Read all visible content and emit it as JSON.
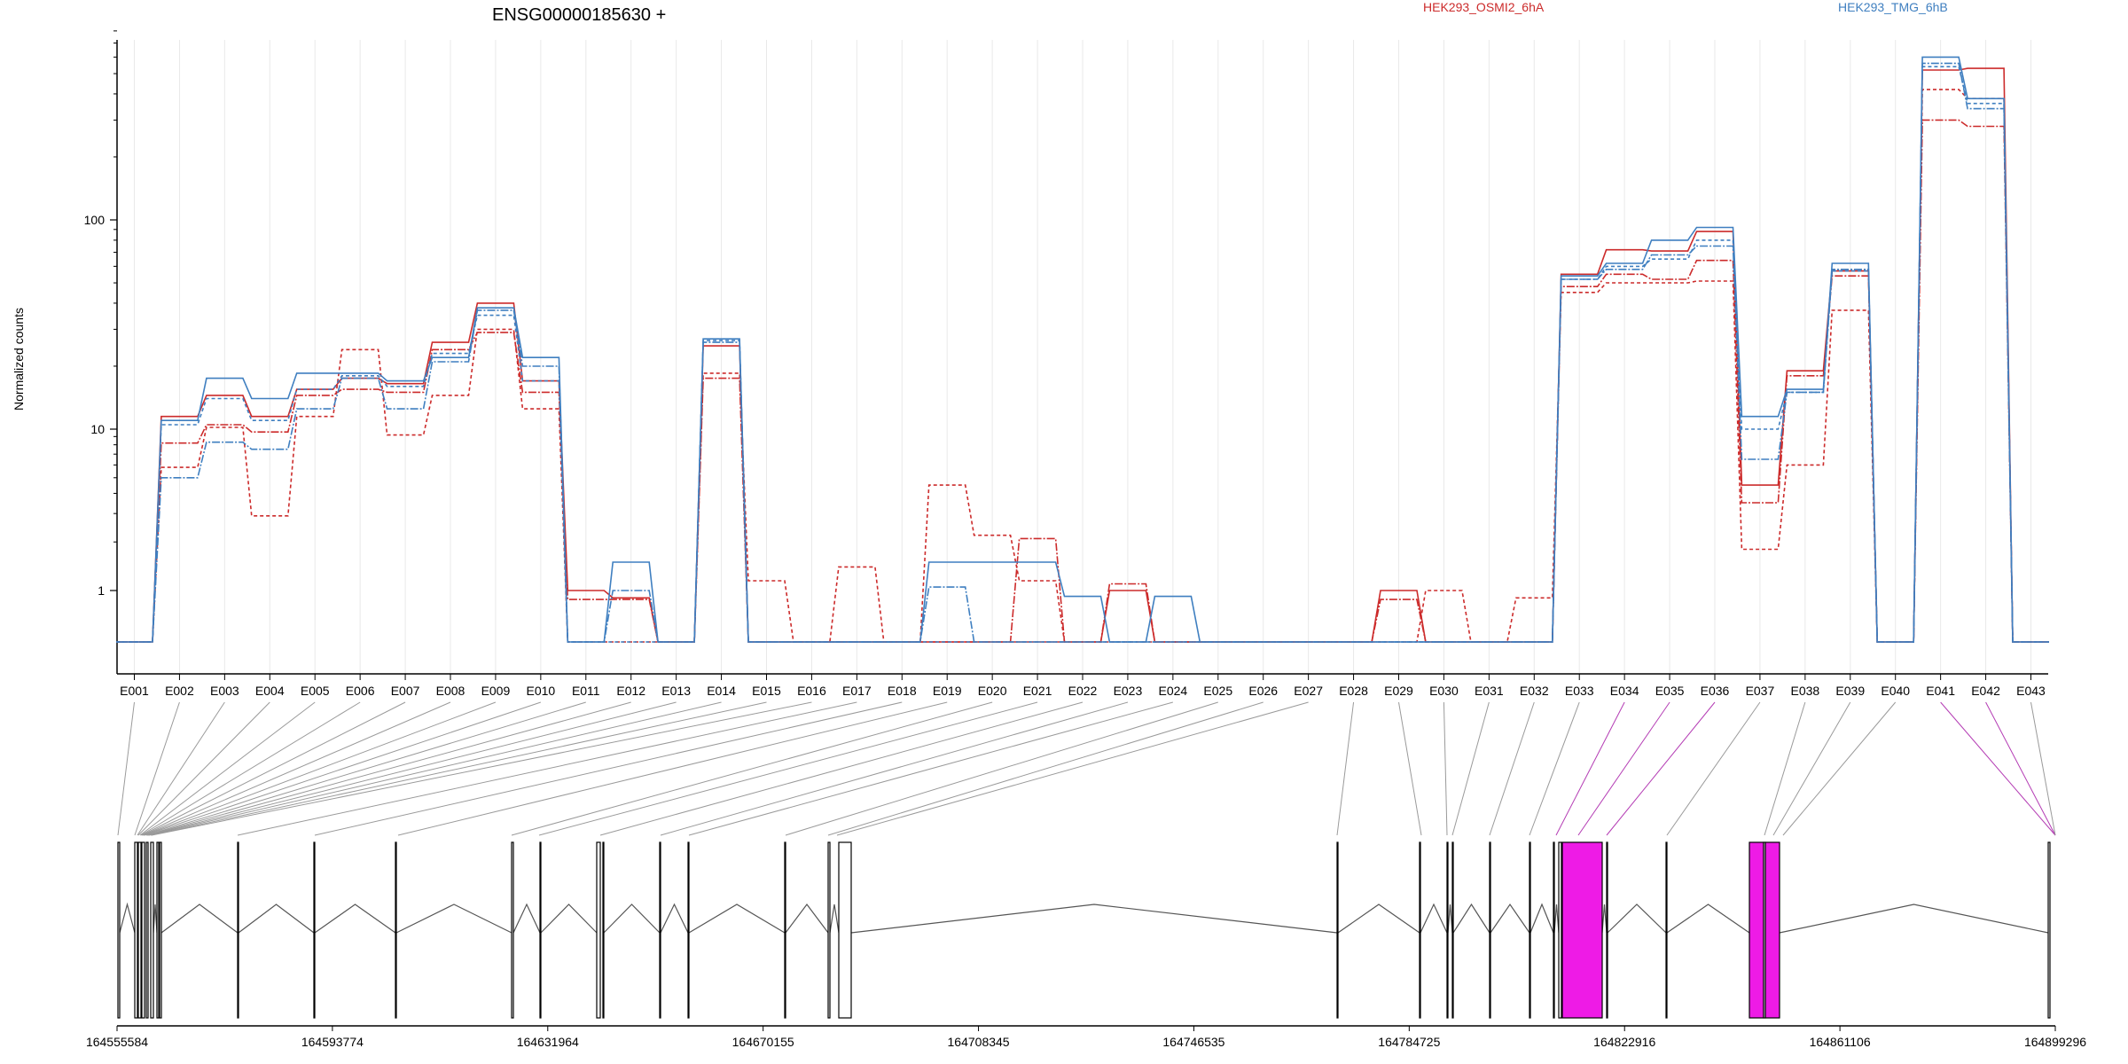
{
  "chart_data": [
    {
      "type": "line",
      "title": "ENSG00000185630 +",
      "xlabel": "",
      "ylabel": "Normalized counts",
      "yscale": "log",
      "ylim": [
        0.45,
        800
      ],
      "y_ticks": [
        1,
        10,
        100
      ],
      "y_tick_labels": [
        "1",
        "10",
        "100"
      ],
      "grid": "vertical lines per exon",
      "legend_placement": "top",
      "legend": [
        {
          "name": "HEK293_OSMI2_6hA",
          "color": "#cc2b2b"
        },
        {
          "name": "HEK293_TMG_6hB",
          "color": "#3f7fc0"
        }
      ],
      "categories": [
        "E001",
        "E002",
        "E003",
        "E004",
        "E005",
        "E006",
        "E007",
        "E008",
        "E009",
        "E010",
        "E011",
        "E012",
        "E013",
        "E014",
        "E015",
        "E016",
        "E017",
        "E018",
        "E019",
        "E020",
        "E021",
        "E022",
        "E023",
        "E024",
        "E025",
        "E026",
        "E027",
        "E028",
        "E029",
        "E030",
        "E031",
        "E032",
        "E033",
        "E034",
        "E035",
        "E036",
        "E037",
        "E038",
        "E039",
        "E040",
        "E041",
        "E042",
        "E043"
      ],
      "series": [
        {
          "group": "HEK293_OSMI2_6hA",
          "color": "#cc2b2b",
          "values": [
            0.48,
            11.5,
            14.5,
            11.5,
            15.5,
            17.5,
            16.5,
            26,
            40,
            17,
            1,
            0.9,
            0.48,
            25,
            0.48,
            0.48,
            0.48,
            0.48,
            0.48,
            0.48,
            0.48,
            0.48,
            1,
            0.48,
            0.48,
            0.48,
            0.48,
            0.48,
            1,
            0.48,
            0.48,
            0.48,
            55,
            72,
            71,
            88,
            4.5,
            19,
            57,
            0.48,
            520,
            530,
            0.48
          ]
        },
        {
          "group": "HEK293_OSMI2_6hA",
          "color": "#cc2b2b",
          "values": [
            0.48,
            8.2,
            10.5,
            9.6,
            14.5,
            15.5,
            15,
            24,
            29,
            15,
            0.88,
            0.88,
            0.48,
            17.5,
            0.48,
            0.48,
            0.48,
            0.48,
            0.48,
            0.48,
            2.1,
            0.48,
            1.1,
            0.48,
            0.48,
            0.48,
            0.48,
            0.48,
            0.88,
            0.48,
            0.48,
            0.48,
            48,
            55,
            52,
            64,
            3.5,
            18,
            54,
            0.48,
            300,
            280,
            0.48
          ]
        },
        {
          "group": "HEK293_OSMI2_6hA",
          "color": "#cc2b2b",
          "values": [
            0.48,
            5.8,
            10.2,
            2.9,
            11.5,
            24,
            9.2,
            14.5,
            30,
            12.5,
            0.48,
            0.48,
            0.48,
            18.5,
            1.15,
            0.48,
            1.4,
            0.48,
            4.5,
            2.2,
            1.15,
            0.48,
            0.48,
            0.48,
            0.48,
            0.48,
            0.48,
            0.48,
            0.48,
            1.0,
            0.48,
            0.9,
            45,
            50,
            50,
            51,
            1.8,
            6,
            37,
            0.48,
            420,
            380,
            0.48
          ]
        },
        {
          "group": "HEK293_TMG_6hB",
          "color": "#3f7fc0",
          "values": [
            0.48,
            11,
            17.5,
            14,
            18.5,
            18.5,
            17,
            22,
            38,
            22,
            0.48,
            1.5,
            0.48,
            27,
            0.48,
            0.48,
            0.48,
            0.48,
            1.5,
            1.5,
            1.5,
            0.92,
            0.48,
            0.92,
            0.48,
            0.48,
            0.48,
            0.48,
            0.48,
            0.48,
            0.48,
            0.48,
            54,
            62,
            80,
            92,
            11.5,
            15.5,
            62,
            0.48,
            600,
            380,
            0.48
          ]
        },
        {
          "group": "HEK293_TMG_6hB",
          "color": "#3f7fc0",
          "values": [
            0.48,
            5,
            8.3,
            7.5,
            12.5,
            17.5,
            12.5,
            21,
            37,
            20,
            0.48,
            1.0,
            0.48,
            26,
            0.48,
            0.48,
            0.48,
            0.48,
            1.05,
            0.48,
            0.48,
            0.48,
            0.48,
            0.48,
            0.48,
            0.48,
            0.48,
            0.48,
            0.48,
            0.48,
            0.48,
            0.48,
            52,
            58,
            68,
            75,
            6.5,
            15,
            58,
            0.48,
            560,
            340,
            0.48
          ]
        },
        {
          "group": "HEK293_TMG_6hB",
          "color": "#3f7fc0",
          "values": [
            0.48,
            10.5,
            14,
            11,
            15.5,
            18,
            16,
            23,
            35,
            17,
            0.48,
            0.48,
            0.48,
            26.5,
            0.48,
            0.48,
            0.48,
            0.48,
            0.48,
            0.48,
            0.48,
            0.48,
            0.48,
            0.48,
            0.48,
            0.48,
            0.48,
            0.48,
            0.48,
            0.48,
            0.48,
            0.48,
            52,
            60,
            65,
            80,
            10,
            15,
            57,
            0.48,
            540,
            360,
            0.48
          ]
        }
      ]
    },
    {
      "type": "gene-model",
      "axis_labels": [
        "164555584",
        "164593774",
        "164631964",
        "164670155",
        "164708345",
        "164746535",
        "164784725",
        "164822916",
        "164861106",
        "164899296"
      ],
      "highlight_color": "#ee1be6",
      "highlighted_exons": [
        "E034",
        "E041"
      ]
    }
  ]
}
